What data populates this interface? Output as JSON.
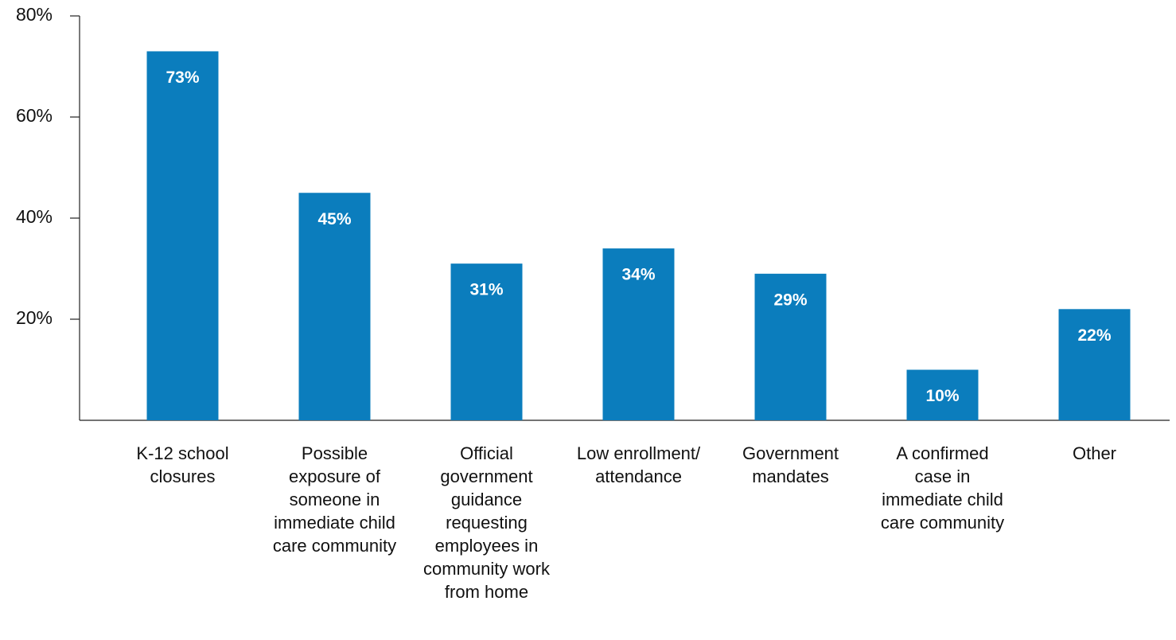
{
  "chart_data": {
    "type": "bar",
    "categories": [
      "K-12 school closures",
      "Possible exposure of someone in immediate child care community",
      "Official government guidance requesting employees in community work from home",
      "Low enrollment/ attendance",
      "Government mandates",
      "A confirmed case in immediate child care community",
      "Other"
    ],
    "values": [
      73,
      45,
      31,
      34,
      29,
      10,
      22
    ],
    "value_labels": [
      "73%",
      "45%",
      "31%",
      "34%",
      "29%",
      "10%",
      "22%"
    ],
    "color": "#0b7dbd",
    "ylim": [
      0,
      80
    ],
    "yticks": [
      {
        "value": 20,
        "label": "20%"
      },
      {
        "value": 40,
        "label": "40%"
      },
      {
        "value": 60,
        "label": "60%"
      },
      {
        "value": 80,
        "label": "80%"
      }
    ]
  }
}
